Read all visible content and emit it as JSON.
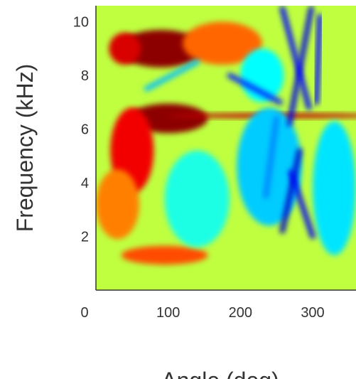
{
  "chart_data": {
    "type": "heatmap",
    "title": "",
    "xlabel": "Angle (deg)",
    "ylabel": "Frequency (kHz)",
    "xlim": [
      0,
      360
    ],
    "ylim": [
      0,
      10.6
    ],
    "x_ticks": [
      0,
      100,
      200,
      300
    ],
    "y_ticks": [
      2,
      4,
      6,
      8,
      10
    ],
    "grid": false,
    "legend": "none",
    "colormap": "jet",
    "colormap_stops": [
      "#00008f",
      "#0000ff",
      "#00ffff",
      "#ffff00",
      "#ff0000",
      "#800000"
    ],
    "baseline_level": 0.55,
    "regions": [
      {
        "angle": 90,
        "freq": 9.0,
        "angle_spread": 60,
        "freq_spread": 0.7,
        "level": 0.98
      },
      {
        "angle": 40,
        "freq": 9.0,
        "angle_spread": 22,
        "freq_spread": 0.6,
        "level": 0.86
      },
      {
        "angle": 175,
        "freq": 9.2,
        "angle_spread": 55,
        "freq_spread": 0.8,
        "level": 0.72
      },
      {
        "angle": 100,
        "freq": 6.4,
        "angle_spread": 55,
        "freq_spread": 0.55,
        "level": 0.98
      },
      {
        "angle": 50,
        "freq": 5.2,
        "angle_spread": 30,
        "freq_spread": 1.6,
        "level": 0.82
      },
      {
        "angle": 30,
        "freq": 3.2,
        "angle_spread": 30,
        "freq_spread": 1.3,
        "level": 0.7
      },
      {
        "angle": 95,
        "freq": 1.3,
        "angle_spread": 60,
        "freq_spread": 0.35,
        "level": 0.74
      },
      {
        "angle": 250,
        "freq": 6.5,
        "angle_spread": 150,
        "freq_spread": 0.09,
        "level": 0.9
      },
      {
        "angle": 240,
        "freq": 4.6,
        "angle_spread": 45,
        "freq_spread": 2.2,
        "level": 0.36
      },
      {
        "angle": 330,
        "freq": 3.8,
        "angle_spread": 30,
        "freq_spread": 2.5,
        "level": 0.38
      },
      {
        "angle": 140,
        "freq": 3.4,
        "angle_spread": 45,
        "freq_spread": 1.8,
        "level": 0.42
      },
      {
        "angle": 230,
        "freq": 8.0,
        "angle_spread": 30,
        "freq_spread": 1.0,
        "level": 0.4
      }
    ],
    "streaks": [
      {
        "angle_start": 282,
        "freq_start": 5.2,
        "angle_end": 258,
        "freq_end": 2.2,
        "level": 0.1
      },
      {
        "angle_start": 270,
        "freq_start": 4.4,
        "angle_end": 300,
        "freq_end": 2.0,
        "level": 0.18
      },
      {
        "angle_start": 298,
        "freq_start": 10.5,
        "angle_end": 268,
        "freq_end": 6.2,
        "level": 0.15
      },
      {
        "angle_start": 258,
        "freq_start": 10.5,
        "angle_end": 295,
        "freq_end": 6.8,
        "level": 0.2
      },
      {
        "angle_start": 250,
        "freq_start": 6.4,
        "angle_end": 235,
        "freq_end": 3.5,
        "level": 0.3
      },
      {
        "angle_start": 310,
        "freq_start": 10.2,
        "angle_end": 305,
        "freq_end": 7.0,
        "level": 0.2
      },
      {
        "angle_start": 185,
        "freq_start": 8.0,
        "angle_end": 255,
        "freq_end": 7.0,
        "level": 0.22
      },
      {
        "angle_start": 70,
        "freq_start": 7.5,
        "angle_end": 140,
        "freq_end": 8.5,
        "level": 0.35
      }
    ]
  }
}
